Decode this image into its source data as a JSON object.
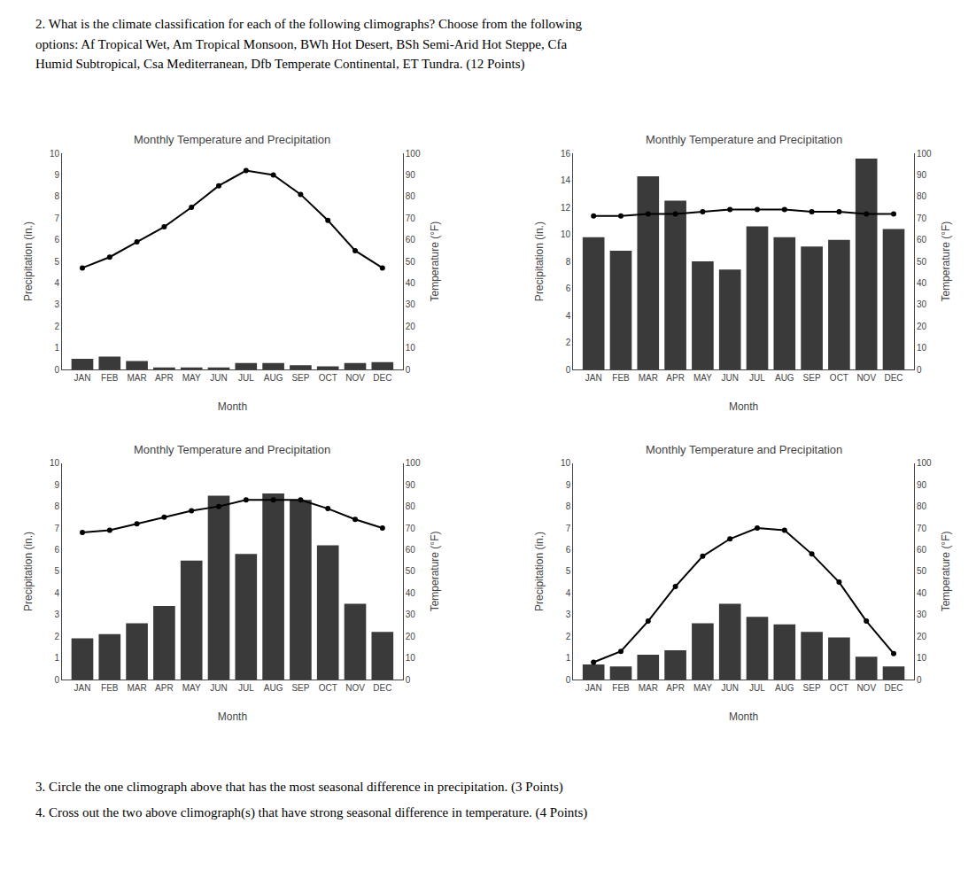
{
  "chart_data": [
    {
      "type": "bar",
      "title": "Monthly Temperature and Precipitation",
      "categories": [
        "JAN",
        "FEB",
        "MAR",
        "APR",
        "MAY",
        "JUN",
        "JUL",
        "AUG",
        "SEP",
        "OCT",
        "NOV",
        "DEC"
      ],
      "xlabel": "Month",
      "ylabel": "Precipitation (in.)",
      "y2label": "Temperature (°F)",
      "series": [
        {
          "type": "bar",
          "color": "#3a3a3a",
          "values": [
            0.5,
            0.6,
            0.4,
            0.1,
            0.1,
            0.1,
            0.3,
            0.3,
            0.2,
            0.15,
            0.3,
            0.35
          ]
        },
        {
          "type": "line",
          "axis": "y2",
          "color": "#000000",
          "marker": "circle",
          "line_style": "solid",
          "values": [
            47,
            52,
            59,
            66,
            75,
            85,
            92,
            90,
            81,
            69,
            55,
            47
          ]
        }
      ],
      "ylim": [
        0,
        10
      ],
      "yticks": [
        0,
        1,
        2,
        3,
        4,
        5,
        6,
        7,
        8,
        9,
        10
      ],
      "y2lim": [
        0,
        100
      ],
      "y2ticks": [
        0,
        10,
        20,
        30,
        40,
        50,
        60,
        70,
        80,
        90,
        100
      ],
      "grid": false
    },
    {
      "type": "bar",
      "title": "Monthly Temperature and Precipitation",
      "categories": [
        "JAN",
        "FEB",
        "MAR",
        "APR",
        "MAY",
        "JUN",
        "JUL",
        "AUG",
        "SEP",
        "OCT",
        "NOV",
        "DEC"
      ],
      "xlabel": "Month",
      "ylabel": "Precipitation (in.)",
      "y2label": "Temperature (°F)",
      "series": [
        {
          "type": "bar",
          "color": "#3a3a3a",
          "values": [
            9.8,
            8.8,
            14.3,
            12.5,
            8.0,
            7.4,
            10.6,
            9.8,
            9.1,
            9.6,
            15.6,
            10.4
          ]
        },
        {
          "type": "line",
          "axis": "y2",
          "color": "#000000",
          "marker": "circle",
          "line_style": "solid",
          "values": [
            71,
            71,
            72,
            72,
            73,
            74,
            74,
            74,
            73,
            73,
            72,
            72
          ]
        }
      ],
      "ylim": [
        0,
        16
      ],
      "yticks": [
        0,
        2,
        4,
        6,
        8,
        10,
        12,
        14,
        16
      ],
      "y2lim": [
        0,
        100
      ],
      "y2ticks": [
        0,
        10,
        20,
        30,
        40,
        50,
        60,
        70,
        80,
        90,
        100
      ],
      "grid": false
    },
    {
      "type": "bar",
      "title": "Monthly Temperature and Precipitation",
      "categories": [
        "JAN",
        "FEB",
        "MAR",
        "APR",
        "MAY",
        "JUN",
        "JUL",
        "AUG",
        "SEP",
        "OCT",
        "NOV",
        "DEC"
      ],
      "xlabel": "Month",
      "ylabel": "Precipitation (in.)",
      "y2label": "Temperature (°F)",
      "series": [
        {
          "type": "bar",
          "color": "#3a3a3a",
          "values": [
            1.9,
            2.1,
            2.6,
            3.4,
            5.5,
            8.5,
            5.8,
            8.6,
            8.3,
            6.2,
            3.5,
            2.2
          ]
        },
        {
          "type": "line",
          "axis": "y2",
          "color": "#000000",
          "marker": "circle",
          "line_style": "solid",
          "values": [
            68,
            69,
            72,
            75,
            78,
            80,
            83,
            83,
            83,
            79,
            74,
            70
          ]
        }
      ],
      "ylim": [
        0,
        10
      ],
      "yticks": [
        0,
        1,
        2,
        3,
        4,
        5,
        6,
        7,
        8,
        9,
        10
      ],
      "y2lim": [
        0,
        100
      ],
      "y2ticks": [
        0,
        10,
        20,
        30,
        40,
        50,
        60,
        70,
        80,
        90,
        100
      ],
      "grid": false
    },
    {
      "type": "bar",
      "title": "Monthly Temperature and Precipitation",
      "categories": [
        "JAN",
        "FEB",
        "MAR",
        "APR",
        "MAY",
        "JUN",
        "JUL",
        "AUG",
        "SEP",
        "OCT",
        "NOV",
        "DEC"
      ],
      "xlabel": "Month",
      "ylabel": "Precipitation (in.)",
      "y2label": "Temperature (°F)",
      "series": [
        {
          "type": "bar",
          "color": "#3a3a3a",
          "values": [
            0.7,
            0.6,
            1.15,
            1.35,
            2.6,
            3.5,
            2.9,
            2.55,
            2.2,
            1.95,
            1.05,
            0.6
          ]
        },
        {
          "type": "line",
          "axis": "y2",
          "color": "#000000",
          "marker": "circle",
          "line_style": "solid",
          "values": [
            8,
            13,
            27,
            43,
            57,
            65,
            70,
            69,
            58,
            45,
            27,
            12
          ]
        }
      ],
      "ylim": [
        0,
        10
      ],
      "yticks": [
        0,
        1,
        2,
        3,
        4,
        5,
        6,
        7,
        8,
        9,
        10
      ],
      "y2lim": [
        0,
        100
      ],
      "y2ticks": [
        0,
        10,
        20,
        30,
        40,
        50,
        60,
        70,
        80,
        90,
        100
      ],
      "grid": false
    }
  ],
  "subtitle": [
    "2. What is the climate classification for each of the following climographs? Choose from the following",
    "options: Af Tropical Wet, Am Tropical Monsoon, BWh Hot Desert, BSh Semi-Arid Hot Steppe, Cfa",
    "Humid Subtropical, Csa Mediterranean, Dfb Temperate Continental, ET Tundra. (12 Points)"
  ],
  "annotations": [
    "3. Circle the one climograph above that has the most seasonal difference in precipitation. (3 Points)",
    "4. Cross out the two above climograph(s) that have strong seasonal difference in temperature. (4 Points)"
  ]
}
